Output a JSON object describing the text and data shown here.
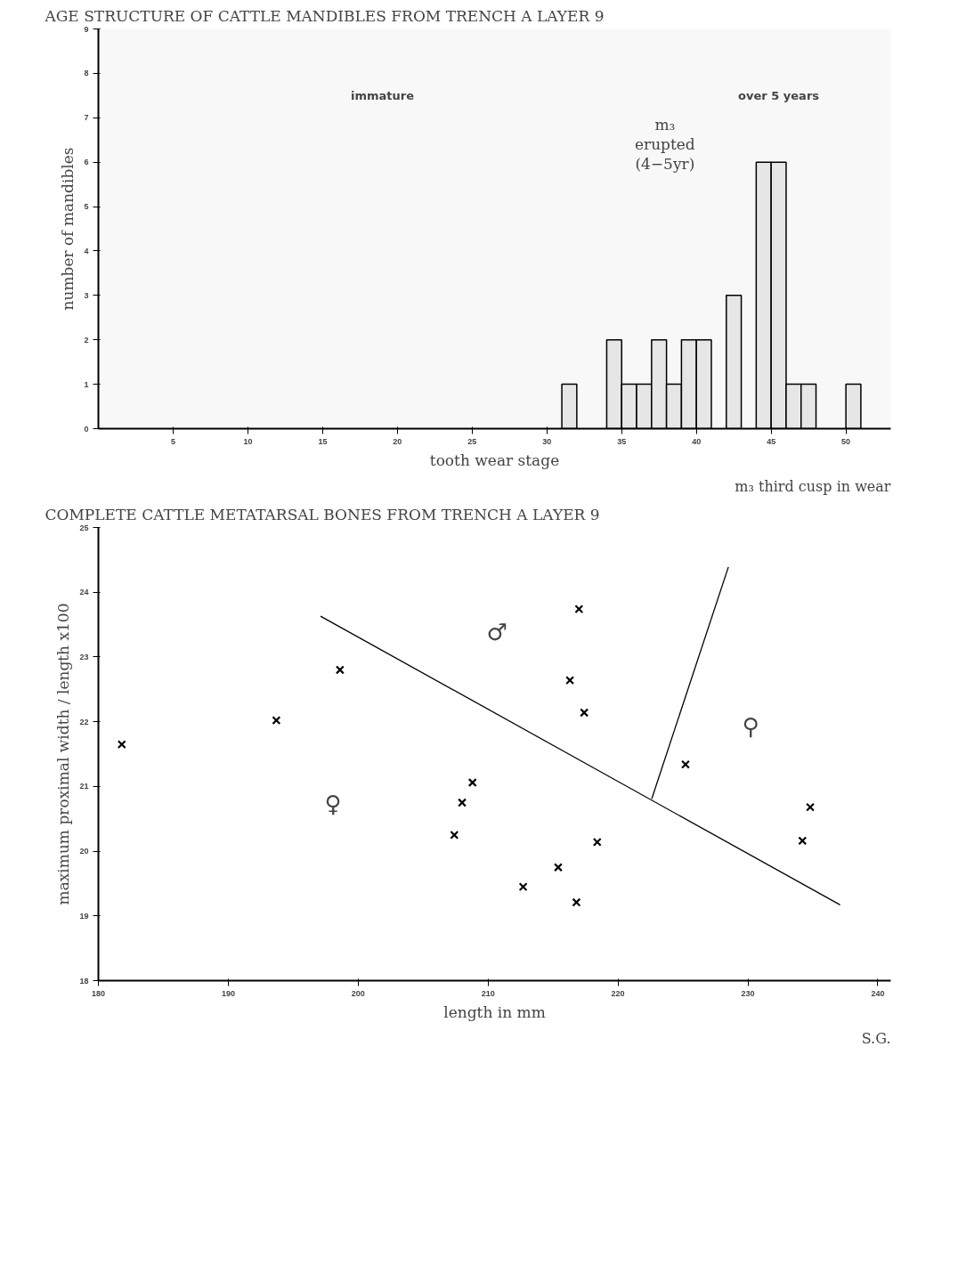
{
  "chart_data": [
    {
      "type": "histogram",
      "title": "AGE STRUCTURE OF CATTLE MANDIBLES FROM TRENCH A LAYER 9",
      "xlabel": "tooth wear stage",
      "ylabel": "number of mandibles",
      "bins": [
        31,
        32,
        33,
        34,
        35,
        36,
        37,
        38,
        39,
        40,
        41,
        42,
        43,
        44,
        45,
        46,
        47,
        48,
        49,
        50,
        51
      ],
      "values": [
        1,
        0,
        0,
        2,
        1,
        1,
        2,
        1,
        2,
        2,
        0,
        3,
        0,
        6,
        6,
        1,
        1,
        0,
        0,
        1
      ],
      "color": "#e6e6e6",
      "xlim": [
        0,
        53
      ],
      "ylim": [
        0,
        9
      ],
      "xticks": [
        5,
        10,
        15,
        20,
        25,
        30,
        35,
        40,
        45,
        50
      ],
      "yticks": [
        0,
        1,
        2,
        3,
        4,
        5,
        6,
        7,
        8,
        9
      ],
      "grid": false,
      "bands": [
        {
          "axis": "x",
          "from": 0,
          "to": 38,
          "label": "immature"
        },
        {
          "axis": "x",
          "from": 38,
          "to": 53,
          "label": "over 5 years"
        }
      ],
      "annotations": [
        "m₃\nerupted\n(4−5yr)",
        "m₃ third cusp in wear"
      ]
    },
    {
      "type": "scatter",
      "title": "COMPLETE CATTLE METATARSAL BONES FROM TRENCH A LAYER 9",
      "xlabel": "length in mm",
      "ylabel": "maximum proximal width / length x100",
      "xlim": [
        180,
        241
      ],
      "ylim": [
        18,
        25
      ],
      "xticks": [
        180,
        190,
        200,
        210,
        220,
        230,
        240
      ],
      "yticks": [
        18,
        19,
        20,
        21,
        22,
        23,
        24,
        25
      ],
      "grid": false,
      "series": [
        {
          "type": "scatter",
          "marker": "cross",
          "color": "#000000",
          "x": [
            181.8,
            193.7,
            198.6,
            208.8,
            208.0,
            207.4,
            212.7,
            215.4,
            216.8,
            218.4,
            216.3,
            217.0,
            217.4,
            225.2,
            234.8,
            234.2
          ],
          "values": [
            21.65,
            22.02,
            22.8,
            21.06,
            20.75,
            20.25,
            19.45,
            19.75,
            19.21,
            20.14,
            22.64,
            23.74,
            22.14,
            21.34,
            20.68,
            20.16
          ]
        },
        {
          "type": "line",
          "color": "#000000",
          "x": [
            197.1,
            237.1
          ],
          "values": [
            23.63,
            19.17
          ]
        },
        {
          "type": "line",
          "color": "#000000",
          "x": [
            222.6,
            228.5
          ],
          "values": [
            20.81,
            24.39
          ]
        }
      ],
      "annotations": [
        "♂",
        "♀",
        "⚲",
        "S.G."
      ]
    }
  ]
}
